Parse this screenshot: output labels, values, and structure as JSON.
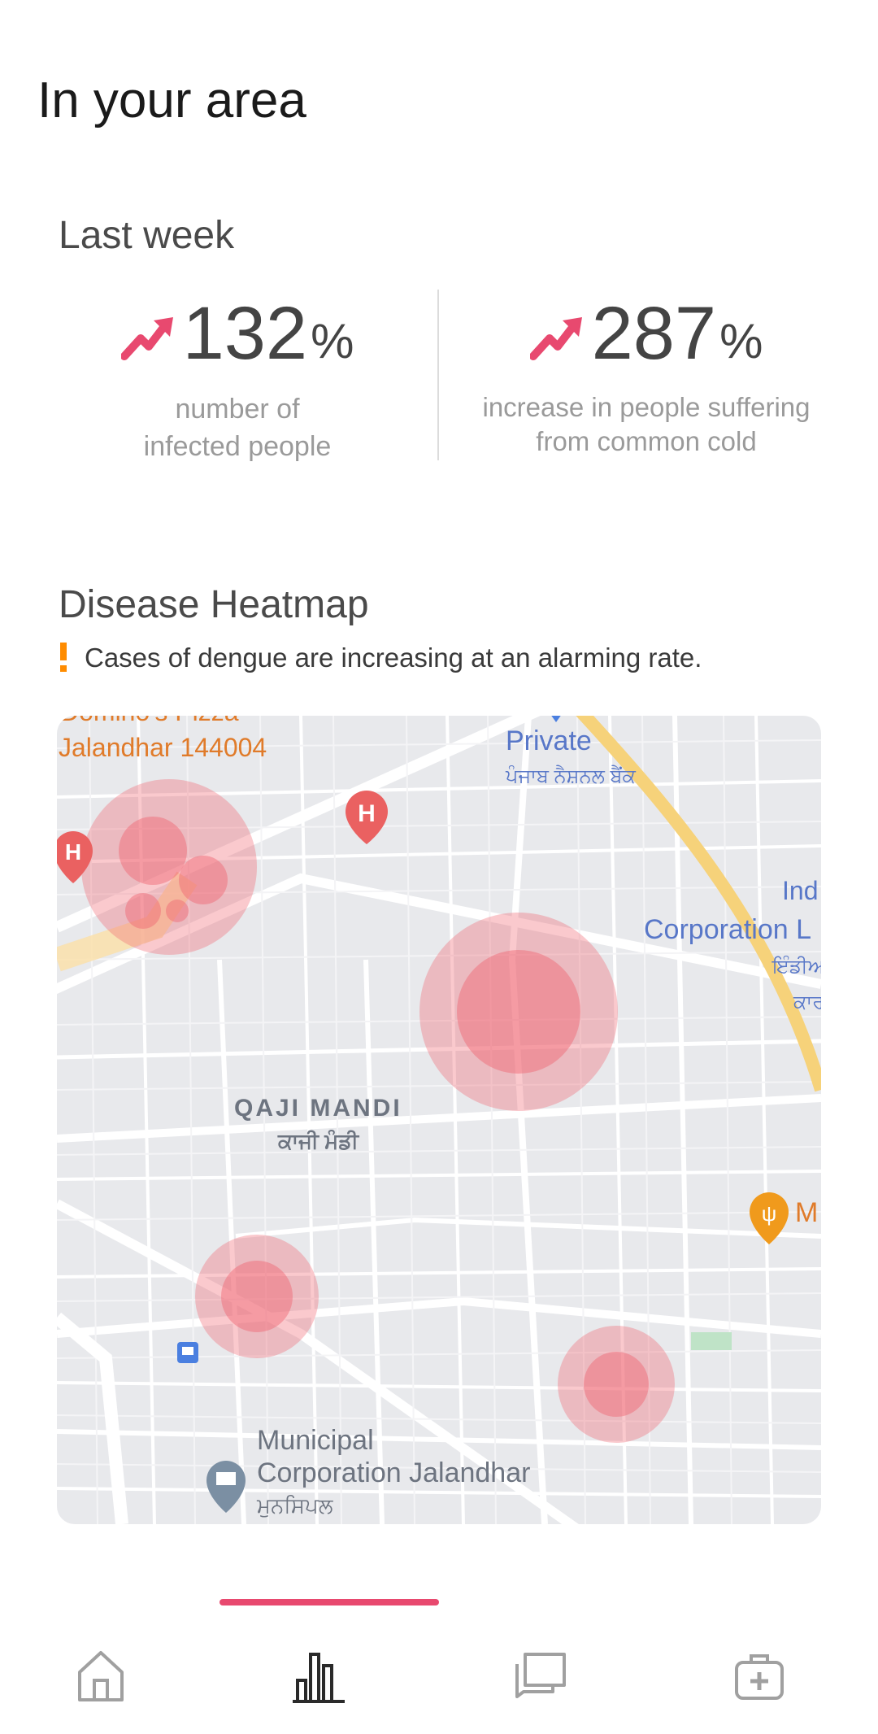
{
  "header": {
    "title": "In your area"
  },
  "last_week": {
    "title": "Last week",
    "stats": [
      {
        "value": "132",
        "unit": "%",
        "trend_icon": "trending-up-icon",
        "description_line1": "number of",
        "description_line2": "infected people"
      },
      {
        "value": "287",
        "unit": "%",
        "trend_icon": "trending-up-icon",
        "description_line1": "increase in people suffering",
        "description_line2": "from common cold"
      }
    ]
  },
  "heatmap": {
    "title": "Disease Heatmap",
    "warning": "Cases of dengue are increasing at an alarming rate.",
    "map_labels": {
      "dominos": "Domino's Pizza",
      "jalandhar": "Jalandhar 144004",
      "private": "Private",
      "pnb_punjabi": "ਪੰਜਾਬ ਨੈਸ਼ਨਲ ਬੈਂਕ",
      "ind": "Ind",
      "corporation": "Corporation L",
      "punjabi_right1": "ਇੰਡੀਅ",
      "punjabi_right2": "ਕਾਰ",
      "qaji_mandi": "QAJI MANDI",
      "qaji_mandi_punjabi": "ਕਾਜੀ ਮੰਡੀ",
      "restaurant_letter": "M",
      "municipal1": "Municipal",
      "municipal2": "Corporation Jalandhar",
      "municipal_punjabi": "ਮੁਨਸਿਪਲ"
    }
  },
  "bottom_nav": {
    "items": [
      {
        "icon": "home-icon",
        "active": false
      },
      {
        "icon": "bar-chart-icon",
        "active": true
      },
      {
        "icon": "messages-icon",
        "active": false
      },
      {
        "icon": "medical-kit-icon",
        "active": false
      }
    ]
  },
  "colors": {
    "accent": "#e8496f",
    "warning": "#ff8c00",
    "heat": "#f06470"
  }
}
